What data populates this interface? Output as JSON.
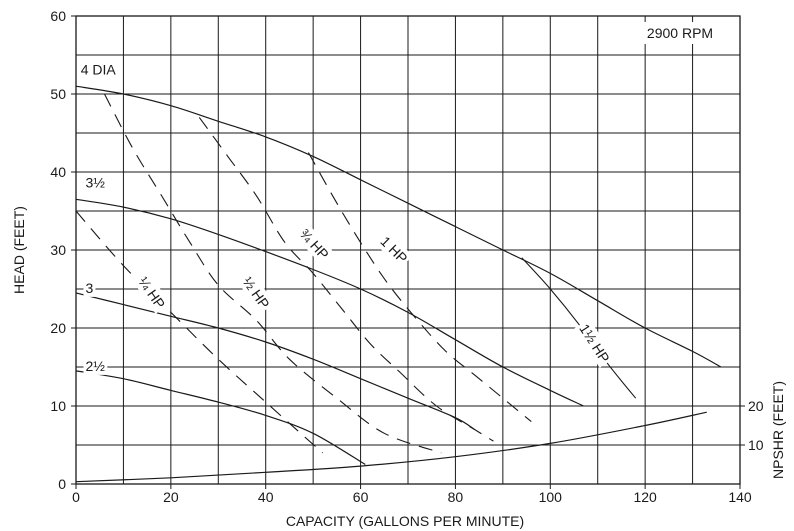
{
  "chart_data": {
    "type": "line",
    "rpm_label": "2900 RPM",
    "xlabel": "CAPACITY (GALLONS PER MINUTE)",
    "ylabel": "HEAD (FEET)",
    "y2label": "NPSHR (FEET)",
    "xlim": [
      0,
      140
    ],
    "ylim": [
      0,
      60
    ],
    "x_ticks": [
      "0",
      "20",
      "40",
      "60",
      "80",
      "100",
      "120",
      "140"
    ],
    "y_ticks": [
      "0",
      "10",
      "20",
      "30",
      "40",
      "50",
      "60"
    ],
    "y2_ticks": [
      {
        "label": "10",
        "at_head": 5
      },
      {
        "label": "20",
        "at_head": 10
      }
    ],
    "impeller_curves": [
      {
        "name": "4 DIA",
        "points": [
          [
            0,
            51
          ],
          [
            10,
            50
          ],
          [
            20,
            48.5
          ],
          [
            30,
            46.5
          ],
          [
            40,
            44.5
          ],
          [
            50,
            42
          ],
          [
            60,
            39
          ],
          [
            70,
            36
          ],
          [
            80,
            33
          ],
          [
            90,
            30
          ],
          [
            100,
            27
          ],
          [
            110,
            23.5
          ],
          [
            120,
            20
          ],
          [
            130,
            17
          ],
          [
            136,
            15
          ]
        ]
      },
      {
        "name": "3½",
        "points": [
          [
            0,
            36.5
          ],
          [
            10,
            35.5
          ],
          [
            20,
            34
          ],
          [
            30,
            32
          ],
          [
            40,
            29.8
          ],
          [
            50,
            27.5
          ],
          [
            60,
            25
          ],
          [
            70,
            22
          ],
          [
            80,
            18.5
          ],
          [
            90,
            15
          ],
          [
            100,
            12
          ],
          [
            107,
            10
          ]
        ]
      },
      {
        "name": "3",
        "points": [
          [
            0,
            24.5
          ],
          [
            10,
            23
          ],
          [
            20,
            21.5
          ],
          [
            30,
            20
          ],
          [
            40,
            18.2
          ],
          [
            50,
            16
          ],
          [
            60,
            13.5
          ],
          [
            70,
            11
          ],
          [
            80,
            8.5
          ],
          [
            84,
            7
          ]
        ]
      },
      {
        "name": "2½",
        "points": [
          [
            0,
            14.5
          ],
          [
            10,
            13.5
          ],
          [
            20,
            12
          ],
          [
            30,
            10.5
          ],
          [
            40,
            8.8
          ],
          [
            50,
            6.5
          ],
          [
            61,
            2.5
          ]
        ]
      }
    ],
    "hp_curves": [
      {
        "name": "¼ HP",
        "points": [
          [
            0,
            35
          ],
          [
            10,
            28
          ],
          [
            20,
            22
          ],
          [
            30,
            16
          ],
          [
            40,
            10.5
          ],
          [
            52,
            4
          ]
        ]
      },
      {
        "name": "½ HP",
        "points": [
          [
            6,
            50
          ],
          [
            12,
            43
          ],
          [
            18,
            37
          ],
          [
            24,
            31
          ],
          [
            30,
            25.5
          ],
          [
            38,
            21
          ],
          [
            45,
            16
          ],
          [
            55,
            11
          ],
          [
            65,
            6.5
          ],
          [
            77,
            4
          ]
        ]
      },
      {
        "name": "¾ HP",
        "points": [
          [
            26,
            47
          ],
          [
            32,
            42
          ],
          [
            38,
            37
          ],
          [
            44,
            31
          ],
          [
            50,
            27
          ],
          [
            56,
            22.5
          ],
          [
            62,
            18
          ],
          [
            68,
            14.5
          ],
          [
            76,
            10
          ],
          [
            84,
            7
          ],
          [
            88,
            5.5
          ]
        ]
      },
      {
        "name": "1 HP",
        "points": [
          [
            49,
            42.5
          ],
          [
            55,
            36
          ],
          [
            61,
            30
          ],
          [
            66,
            25.5
          ],
          [
            72,
            21
          ],
          [
            78,
            17
          ],
          [
            84,
            14
          ],
          [
            90,
            11
          ],
          [
            96,
            8
          ]
        ]
      },
      {
        "name": "1½ HP",
        "dashed": false,
        "points": [
          [
            94,
            29
          ],
          [
            100,
            25
          ],
          [
            106,
            20.5
          ],
          [
            112,
            15.5
          ],
          [
            118,
            11
          ]
        ]
      }
    ],
    "npshr_curve": {
      "name": "NPSHR",
      "points": [
        [
          0,
          0.3
        ],
        [
          20,
          0.8
        ],
        [
          40,
          1.5
        ],
        [
          60,
          2.3
        ],
        [
          80,
          3.5
        ],
        [
          100,
          5.2
        ],
        [
          120,
          7.5
        ],
        [
          133,
          9.2
        ]
      ]
    },
    "curve_labels": [
      {
        "text": "4 DIA",
        "anchor": [
          1,
          52.5
        ]
      },
      {
        "text": "3½",
        "anchor": [
          2,
          38
        ]
      },
      {
        "text": "3",
        "anchor": [
          2,
          24.5
        ]
      },
      {
        "text": "2½",
        "anchor": [
          2,
          14.5
        ]
      },
      {
        "text": "¼ HP",
        "anchor": [
          13,
          26
        ],
        "rotate": 55
      },
      {
        "text": "½ HP",
        "anchor": [
          35,
          26
        ],
        "rotate": 55
      },
      {
        "text": "¾ HP",
        "anchor": [
          47,
          32
        ],
        "rotate": 48
      },
      {
        "text": "1 HP",
        "anchor": [
          64,
          31
        ],
        "rotate": 45
      },
      {
        "text": "1½ HP",
        "anchor": [
          106,
          20
        ],
        "rotate": 57
      }
    ],
    "grid": true
  }
}
